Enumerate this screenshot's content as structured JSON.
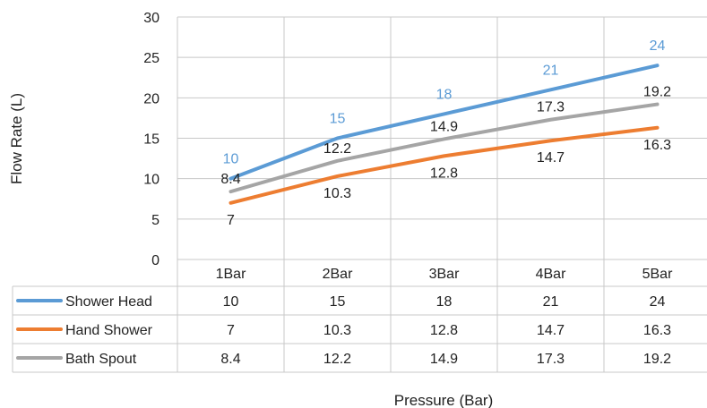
{
  "chart_data": {
    "type": "line",
    "title": "",
    "xlabel": "Pressure (Bar)",
    "ylabel": "Flow Rate (L)",
    "categories": [
      "1Bar",
      "2Bar",
      "3Bar",
      "4Bar",
      "5Bar"
    ],
    "ylim": [
      0,
      30
    ],
    "yticks": [
      "0",
      "5",
      "10",
      "15",
      "20",
      "25",
      "30"
    ],
    "grid": true,
    "legend": "data-table",
    "series": [
      {
        "name": "Shower Head",
        "values": [
          10,
          15,
          18,
          21,
          24
        ],
        "labels": [
          "10",
          "15",
          "18",
          "21",
          "24"
        ],
        "color": "#5b9bd5",
        "label_color": "#5b9bd5"
      },
      {
        "name": "Hand Shower",
        "values": [
          7,
          10.3,
          12.8,
          14.7,
          16.3
        ],
        "labels": [
          "7",
          "10.3",
          "12.8",
          "14.7",
          "16.3"
        ],
        "color": "#ed7d31",
        "label_color": "#222222"
      },
      {
        "name": "Bath Spout",
        "values": [
          8.4,
          12.2,
          14.9,
          17.3,
          19.2
        ],
        "labels": [
          "8.4",
          "12.2",
          "14.9",
          "17.3",
          "19.2"
        ],
        "color": "#a5a5a5",
        "label_color": "#222222"
      }
    ]
  }
}
